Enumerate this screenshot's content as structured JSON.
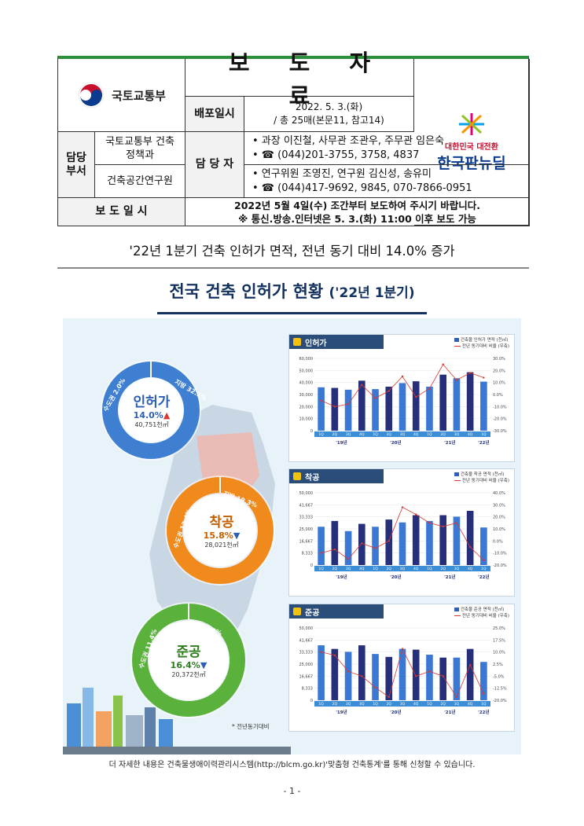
{
  "header": {
    "ministry": "국토교통부",
    "title": "보 도 자 료",
    "distribution_label": "배포일시",
    "distribution_date": "2022. 5. 3.(화)",
    "distribution_pages": "/ 총 25매(본문11, 참고14)",
    "newsdeal_tagline": "대한민국 대전환",
    "newsdeal_name": "한국판뉴딜",
    "dept_label": "담당 부서",
    "dept1": "국토교통부 건축정책과",
    "dept2": "건축공간연구원",
    "manager_label": "담 당 자",
    "contact1_names": "• 과장 이진철, 사무관 조관우, 주무관 임은숙",
    "contact1_phone": "• ☎ (044)201-3755, 3758, 4837",
    "contact2_names": "• 연구위원 조영진, 연구원 김신성, 송유미",
    "contact2_phone": "• ☎ (044)417-9692, 9845, 070-7866-0951",
    "embargo_label": "보 도 일 시",
    "embargo_line1": "2022년 5월 4일(수) 조간부터 보도하여 주시기 바랍니다.",
    "embargo_line2": "※ 통신.방송.인터넷은 5. 3.(화) 11:00 이후 보도 가능"
  },
  "headline": "'22년 1분기 건축 인허가 면적, 전년 동기 대비 14.0% 증가",
  "poster": {
    "title": "전국 건축 인허가 현황",
    "title_sub": "('22년 1분기)",
    "prev_year_note": "* 전년동기대비",
    "donuts": [
      {
        "name": "인허가",
        "rate": "14.0%",
        "direction": "up",
        "area": "40,751천㎡",
        "ring_color": "#3f7fd1",
        "seg_left": "수도권 2.0%",
        "seg_right": "지방 32.1%"
      },
      {
        "name": "착공",
        "rate": "15.8%",
        "direction": "down",
        "area": "28,021천㎡",
        "ring_color": "#f08a1c",
        "seg_left": "수도권 12.4%",
        "seg_right": "지방 19.3%"
      },
      {
        "name": "준공",
        "rate": "16.4%",
        "direction": "down",
        "area": "20,372천㎡",
        "ring_color": "#5ab13c",
        "seg_left": "수도권 11.4%",
        "seg_right": "지방 21.4%"
      }
    ]
  },
  "chart_data": [
    {
      "type": "bar",
      "title": "인허가",
      "categories": [
        "1Q",
        "2Q",
        "3Q",
        "4Q",
        "1Q",
        "2Q",
        "3Q",
        "4Q",
        "1Q",
        "2Q",
        "3Q",
        "4Q",
        "1Q"
      ],
      "year_labels": [
        "'19년",
        "'20년",
        "'21년",
        "'22년"
      ],
      "series": [
        {
          "name": "건축물 인허가 면적 (천㎡)",
          "values": [
            36000,
            35500,
            34000,
            41500,
            34500,
            36500,
            39500,
            41000,
            36500,
            46500,
            43500,
            48500,
            40700
          ]
        },
        {
          "name": "전년 동기대비 비율 (우축)",
          "values": [
            -5,
            -10,
            -8,
            8,
            -3,
            3,
            15,
            -2,
            5,
            25,
            12,
            18,
            14
          ]
        }
      ],
      "ylim": [
        0,
        60000
      ],
      "y2lim": [
        -30,
        30
      ]
    },
    {
      "type": "bar",
      "title": "착공",
      "categories": [
        "1Q",
        "2Q",
        "3Q",
        "4Q",
        "1Q",
        "2Q",
        "3Q",
        "4Q",
        "1Q",
        "2Q",
        "3Q",
        "4Q",
        "1Q"
      ],
      "year_labels": [
        "'19년",
        "'20년",
        "'21년",
        "'22년"
      ],
      "series": [
        {
          "name": "건축물 착공 면적 (천㎡)",
          "values": [
            26500,
            30500,
            23500,
            28500,
            26500,
            31500,
            29500,
            34500,
            30500,
            34500,
            33500,
            37500,
            26000
          ]
        },
        {
          "name": "전년 동기대비 비율 (우축)",
          "values": [
            -10,
            -7,
            -15,
            -2,
            -6,
            0,
            28,
            22,
            15,
            12,
            15,
            -5,
            -16
          ]
        }
      ],
      "ylim": [
        0,
        50000
      ],
      "y2lim": [
        -20,
        40
      ]
    },
    {
      "type": "bar",
      "title": "준공",
      "categories": [
        "1Q",
        "2Q",
        "3Q",
        "4Q",
        "1Q",
        "2Q",
        "3Q",
        "4Q",
        "1Q",
        "2Q",
        "3Q",
        "4Q",
        "1Q"
      ],
      "year_labels": [
        "'19년",
        "'20년",
        "'21년",
        "'22년"
      ],
      "series": [
        {
          "name": "건축물 준공 면적 (천㎡)",
          "values": [
            38000,
            35500,
            33500,
            38000,
            32000,
            30000,
            35500,
            35000,
            31500,
            29500,
            29500,
            35500,
            26500
          ]
        },
        {
          "name": "전년 동기대비 비율 (우축)",
          "values": [
            10,
            8,
            -2,
            -5,
            -12,
            -18,
            12,
            -5,
            -2,
            -5,
            -18,
            2,
            -16
          ]
        }
      ],
      "ylim": [
        0,
        50000
      ],
      "y2lim": [
        -20,
        25
      ]
    }
  ],
  "footer_note": "더 자세한 내용은 건축물생애이력관리시스템(http://blcm.go.kr)'맞춤형 건축통계'를 통해 신청할 수 있습니다.",
  "page_number": "- 1 -"
}
